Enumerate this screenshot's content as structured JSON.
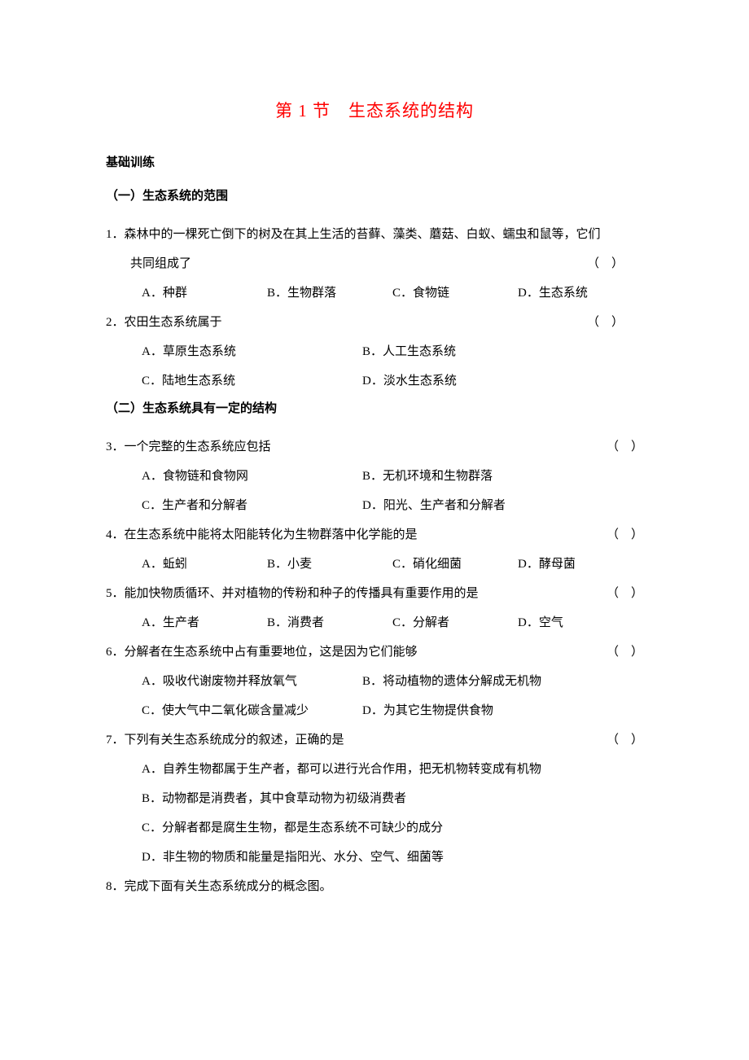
{
  "title": "第 1 节　生态系统的结构",
  "section_heading": "基础训练",
  "subsection1": "（一）生态系统的范围",
  "subsection2": "（二）生态系统具有一定的结构",
  "paren": "（　）",
  "q1": {
    "num": "1．",
    "stem_line1": "森林中的一棵死亡倒下的树及在其上生活的苔藓、藻类、蘑菇、白蚁、蠕虫和鼠等，它们",
    "stem_line2": "共同组成了",
    "opts": [
      "A．种群",
      "B．生物群落",
      "C．食物链",
      "D．生态系统"
    ]
  },
  "q2": {
    "num": "2．",
    "stem": "农田生态系统属于",
    "opts": [
      "A．草原生态系统",
      "B．人工生态系统",
      "C．陆地生态系统",
      "D．淡水生态系统"
    ]
  },
  "q3": {
    "num": "3．",
    "stem": "一个完整的生态系统应包括",
    "opts": [
      "A．食物链和食物网",
      "B．无机环境和生物群落",
      "C．生产者和分解者",
      "D．阳光、生产者和分解者"
    ]
  },
  "q4": {
    "num": "4．",
    "stem": "在生态系统中能将太阳能转化为生物群落中化学能的是",
    "opts": [
      "A．蚯蚓",
      "B．小麦",
      "C．硝化细菌",
      "D．酵母菌"
    ]
  },
  "q5": {
    "num": "5．",
    "stem": "能加快物质循环、并对植物的传粉和种子的传播具有重要作用的是",
    "opts": [
      "A．生产者",
      "B．消费者",
      "C．分解者",
      "D．空气"
    ]
  },
  "q6": {
    "num": "6．",
    "stem": "分解者在生态系统中占有重要地位，这是因为它们能够",
    "opts": [
      "A．吸收代谢废物并释放氧气",
      "B．将动植物的遗体分解成无机物",
      "C．使大气中二氧化碳含量减少",
      "D．为其它生物提供食物"
    ]
  },
  "q7": {
    "num": "7．",
    "stem": "下列有关生态系统成分的叙述，正确的是",
    "opts": [
      "A．自养生物都属于生产者，都可以进行光合作用，把无机物转变成有机物",
      "B．动物都是消费者，其中食草动物为初级消费者",
      "C．分解者都是腐生生物，都是生态系统不可缺少的成分",
      "D．非生物的物质和能量是指阳光、水分、空气、细菌等"
    ]
  },
  "q8": {
    "num": "8．",
    "stem": "完成下面有关生态系统成分的概念图。"
  }
}
